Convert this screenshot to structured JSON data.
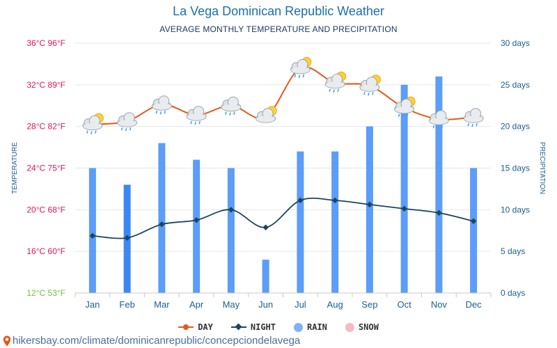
{
  "title": "La Vega Dominican Republic Weather",
  "subtitle": "AVERAGE MONTHLY TEMPERATURE AND PRECIPITATION",
  "source_url": "hikersbay.com/climate/dominicanrepublic/concepciondelavega",
  "legend": {
    "day": "DAY",
    "night": "NIGHT",
    "rain": "RAIN",
    "snow": "SNOW"
  },
  "colors": {
    "day_line": "#e8571a",
    "night_line": "#1a4660",
    "rain_bar": "#5b9df9",
    "rain_bar_highlight": "#3d87f5",
    "snow": "#f7b9c8",
    "temp_label": "#e0145a",
    "temp_label_low": "#6cbf3a",
    "precip_label": "#1a5f91",
    "grid": "#e6e6e6",
    "month_label": "#1a5f91"
  },
  "chart_data": {
    "type": "bar+line",
    "categories": [
      "Jan",
      "Feb",
      "Mar",
      "Apr",
      "May",
      "Jun",
      "Jul",
      "Aug",
      "Sep",
      "Oct",
      "Nov",
      "Dec"
    ],
    "series": [
      {
        "name": "DAY",
        "axis": "left",
        "unit": "°C",
        "values": [
          28.2,
          28.5,
          30.1,
          29.1,
          30.0,
          28.9,
          33.6,
          32.2,
          31.9,
          29.8,
          28.7,
          28.9
        ]
      },
      {
        "name": "NIGHT",
        "axis": "left",
        "unit": "°C",
        "values": [
          17.5,
          17.3,
          18.6,
          19.0,
          20.0,
          18.3,
          20.9,
          20.9,
          20.5,
          20.1,
          19.7,
          18.9
        ]
      },
      {
        "name": "RAIN",
        "axis": "right",
        "unit": "days",
        "values": [
          15,
          13,
          18,
          16,
          15,
          4,
          17,
          17,
          20,
          25,
          26,
          15
        ]
      }
    ],
    "weather_icons": [
      "sun-cloud-rain",
      "cloud-rain",
      "cloud-rain",
      "cloud-rain",
      "cloud-rain",
      "sun-cloud",
      "sun-cloud-rain",
      "sun-cloud-rain",
      "sun-cloud-rain",
      "sun-cloud-rain",
      "cloud-rain",
      "cloud-rain"
    ],
    "highlight_index": 1,
    "left_axis": {
      "label": "TEMPERATURE",
      "ylim": [
        12,
        36
      ],
      "ticks": [
        {
          "value": 36,
          "label": "36°C 96°F"
        },
        {
          "value": 32,
          "label": "32°C 89°F"
        },
        {
          "value": 28,
          "label": "28°C 82°F"
        },
        {
          "value": 24,
          "label": "24°C 75°F"
        },
        {
          "value": 20,
          "label": "20°C 68°F"
        },
        {
          "value": 16,
          "label": "16°C 60°F"
        },
        {
          "value": 12,
          "label": "12°C 53°F"
        }
      ]
    },
    "right_axis": {
      "label": "PRECIPITATION",
      "ylim": [
        0,
        30
      ],
      "ticks": [
        {
          "value": 30,
          "label": "30 days"
        },
        {
          "value": 25,
          "label": "25 days"
        },
        {
          "value": 20,
          "label": "20 days"
        },
        {
          "value": 15,
          "label": "15 days"
        },
        {
          "value": 10,
          "label": "10 days"
        },
        {
          "value": 5,
          "label": "5 days"
        },
        {
          "value": 0,
          "label": "0 days"
        }
      ]
    }
  }
}
